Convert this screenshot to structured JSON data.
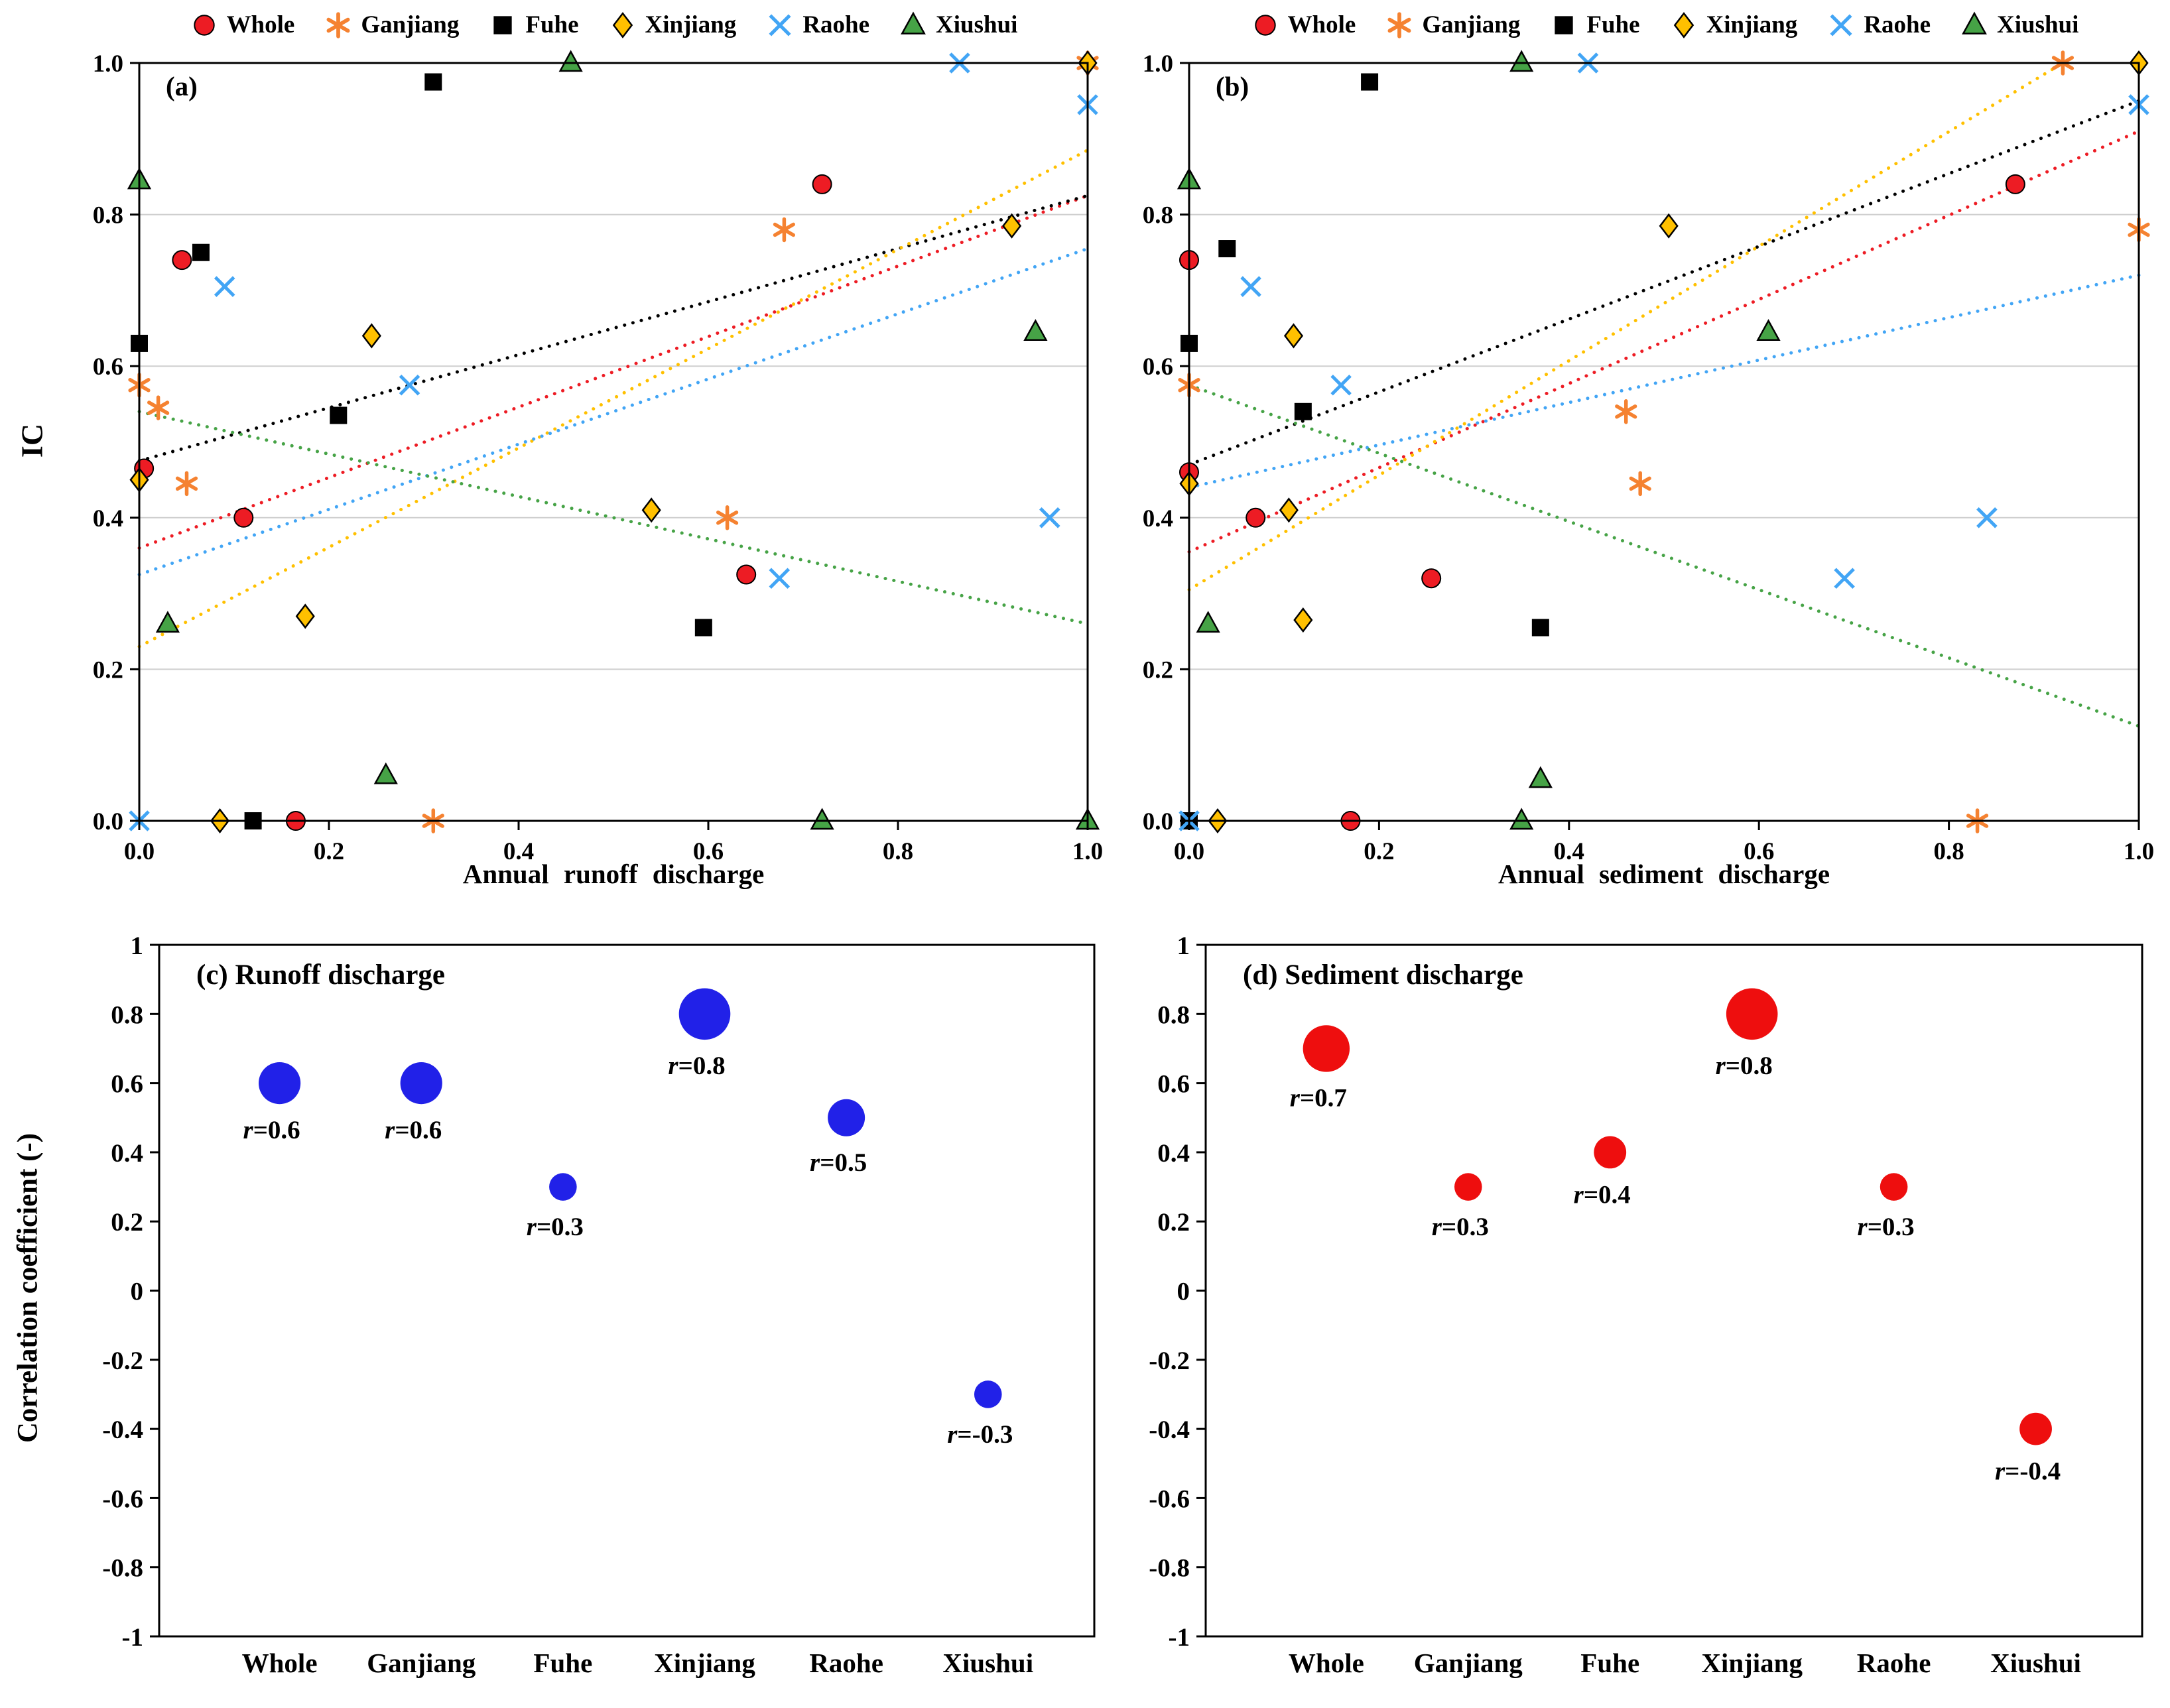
{
  "figure": {
    "background": "#ffffff"
  },
  "legend": {
    "items": [
      {
        "name": "Whole",
        "marker": "circle",
        "color": "#ed1c24",
        "edge": "#000000"
      },
      {
        "name": "Ganjiang",
        "marker": "asterisk",
        "color": "#f58231",
        "edge": null
      },
      {
        "name": "Fuhe",
        "marker": "square",
        "color": "#000000",
        "edge": null
      },
      {
        "name": "Xinjiang",
        "marker": "diamond",
        "color": "#ffc000",
        "edge": "#000000"
      },
      {
        "name": "Raohe",
        "marker": "x",
        "color": "#42a5f5",
        "edge": null
      },
      {
        "name": "Xiushui",
        "marker": "triangle",
        "color": "#46a346",
        "edge": "#000000"
      }
    ]
  },
  "chart_data": [
    {
      "id": "a",
      "type": "scatter",
      "panel_label": "(a)",
      "xlabel": "Annual runoff discharge",
      "ylabel": "IC",
      "xlim": [
        0,
        1
      ],
      "ylim": [
        0,
        1
      ],
      "xtick_values": [
        0,
        0.2,
        0.4,
        0.6,
        0.8,
        1
      ],
      "xtick_labels": [
        "0.0",
        "0.2",
        "0.4",
        "0.6",
        "0.8",
        "1.0"
      ],
      "ytick_values": [
        0,
        0.2,
        0.4,
        0.6,
        0.8,
        1
      ],
      "ytick_labels": [
        "0.0",
        "0.2",
        "0.4",
        "0.6",
        "0.8",
        "1.0"
      ],
      "grid": "horizontal",
      "series": [
        {
          "name": "Whole",
          "marker": "circle",
          "color": "#ed1c24",
          "edge": "#000000",
          "points": [
            [
              0.005,
              0.465
            ],
            [
              0.045,
              0.74
            ],
            [
              0.11,
              0.4
            ],
            [
              0.165,
              0.0
            ],
            [
              0.64,
              0.325
            ],
            [
              0.72,
              0.84
            ]
          ],
          "trend": [
            [
              0,
              0.36
            ],
            [
              1,
              0.825
            ]
          ]
        },
        {
          "name": "Ganjiang",
          "marker": "asterisk",
          "color": "#f58231",
          "edge": null,
          "points": [
            [
              0.0,
              0.575
            ],
            [
              0.02,
              0.545
            ],
            [
              0.05,
              0.445
            ],
            [
              0.31,
              0.0
            ],
            [
              0.62,
              0.4
            ],
            [
              0.68,
              0.78
            ],
            [
              1.0,
              1.0
            ]
          ],
          "trend": null
        },
        {
          "name": "Fuhe",
          "marker": "square",
          "color": "#000000",
          "edge": null,
          "points": [
            [
              0.0,
              0.63
            ],
            [
              0.065,
              0.75
            ],
            [
              0.12,
              0.0
            ],
            [
              0.21,
              0.535
            ],
            [
              0.31,
              0.975
            ],
            [
              0.595,
              0.255
            ]
          ],
          "trend": [
            [
              0,
              0.475
            ],
            [
              1,
              0.825
            ]
          ]
        },
        {
          "name": "Xinjiang",
          "marker": "diamond",
          "color": "#ffc000",
          "edge": "#000000",
          "points": [
            [
              0.0,
              0.45
            ],
            [
              0.085,
              0.0
            ],
            [
              0.175,
              0.27
            ],
            [
              0.245,
              0.64
            ],
            [
              0.54,
              0.41
            ],
            [
              0.92,
              0.785
            ],
            [
              1.0,
              1.0
            ]
          ],
          "trend": [
            [
              0,
              0.23
            ],
            [
              1,
              0.885
            ]
          ]
        },
        {
          "name": "Raohe",
          "marker": "x",
          "color": "#42a5f5",
          "edge": null,
          "points": [
            [
              0.0,
              0.0
            ],
            [
              0.09,
              0.705
            ],
            [
              0.285,
              0.575
            ],
            [
              0.675,
              0.32
            ],
            [
              0.865,
              1.0
            ],
            [
              0.96,
              0.4
            ],
            [
              1.0,
              0.945
            ]
          ],
          "trend": [
            [
              0,
              0.325
            ],
            [
              1,
              0.755
            ]
          ]
        },
        {
          "name": "Xiushui",
          "marker": "triangle",
          "color": "#46a346",
          "edge": "#000000",
          "points": [
            [
              0.0,
              0.845
            ],
            [
              0.03,
              0.26
            ],
            [
              0.26,
              0.06
            ],
            [
              0.455,
              1.0
            ],
            [
              0.72,
              0.0
            ],
            [
              0.945,
              0.645
            ],
            [
              1.0,
              0.0
            ]
          ],
          "trend": [
            [
              0,
              0.54
            ],
            [
              1,
              0.26
            ]
          ]
        }
      ]
    },
    {
      "id": "b",
      "type": "scatter",
      "panel_label": "(b)",
      "xlabel": "Annual sediment discharge",
      "ylabel": "",
      "xlim": [
        0,
        1
      ],
      "ylim": [
        0,
        1
      ],
      "xtick_values": [
        0,
        0.2,
        0.4,
        0.6,
        0.8,
        1
      ],
      "xtick_labels": [
        "0.0",
        "0.2",
        "0.4",
        "0.6",
        "0.8",
        "1.0"
      ],
      "ytick_values": [
        0,
        0.2,
        0.4,
        0.6,
        0.8,
        1
      ],
      "ytick_labels": [
        "0.0",
        "0.2",
        "0.4",
        "0.6",
        "0.8",
        "1.0"
      ],
      "grid": "horizontal",
      "series": [
        {
          "name": "Whole",
          "marker": "circle",
          "color": "#ed1c24",
          "edge": "#000000",
          "points": [
            [
              0.0,
              0.74
            ],
            [
              0.0,
              0.46
            ],
            [
              0.07,
              0.4
            ],
            [
              0.17,
              0.0
            ],
            [
              0.255,
              0.32
            ],
            [
              0.87,
              0.84
            ]
          ],
          "trend": [
            [
              0,
              0.355
            ],
            [
              1,
              0.91
            ]
          ]
        },
        {
          "name": "Ganjiang",
          "marker": "asterisk",
          "color": "#f58231",
          "edge": null,
          "points": [
            [
              0.0,
              0.575
            ],
            [
              0.46,
              0.54
            ],
            [
              0.475,
              0.445
            ],
            [
              0.83,
              0.0
            ],
            [
              0.92,
              1.0
            ],
            [
              1.0,
              0.78
            ]
          ],
          "trend": null
        },
        {
          "name": "Fuhe",
          "marker": "square",
          "color": "#000000",
          "edge": null,
          "points": [
            [
              0.0,
              0.0
            ],
            [
              0.0,
              0.63
            ],
            [
              0.04,
              0.755
            ],
            [
              0.12,
              0.54
            ],
            [
              0.19,
              0.975
            ],
            [
              0.37,
              0.255
            ]
          ],
          "trend": [
            [
              0,
              0.47
            ],
            [
              1,
              0.95
            ]
          ]
        },
        {
          "name": "Xinjiang",
          "marker": "diamond",
          "color": "#ffc000",
          "edge": "#000000",
          "points": [
            [
              0.0,
              0.445
            ],
            [
              0.03,
              0.0
            ],
            [
              0.105,
              0.41
            ],
            [
              0.11,
              0.64
            ],
            [
              0.12,
              0.265
            ],
            [
              0.505,
              0.785
            ],
            [
              1.0,
              1.0
            ]
          ],
          "trend": [
            [
              0,
              0.305
            ],
            [
              0.92,
              1.0
            ]
          ]
        },
        {
          "name": "Raohe",
          "marker": "x",
          "color": "#42a5f5",
          "edge": null,
          "points": [
            [
              0.0,
              0.0
            ],
            [
              0.065,
              0.705
            ],
            [
              0.16,
              0.575
            ],
            [
              0.42,
              1.0
            ],
            [
              0.69,
              0.32
            ],
            [
              0.84,
              0.4
            ],
            [
              1.0,
              0.945
            ]
          ],
          "trend": [
            [
              0,
              0.44
            ],
            [
              1,
              0.72
            ]
          ]
        },
        {
          "name": "Xiushui",
          "marker": "triangle",
          "color": "#46a346",
          "edge": "#000000",
          "points": [
            [
              0.0,
              0.845
            ],
            [
              0.02,
              0.26
            ],
            [
              0.35,
              0.0
            ],
            [
              0.35,
              1.0
            ],
            [
              0.37,
              0.055
            ],
            [
              0.61,
              0.645
            ]
          ],
          "trend": [
            [
              0,
              0.575
            ],
            [
              1,
              0.125
            ]
          ]
        }
      ]
    },
    {
      "id": "c",
      "type": "bubble",
      "title": "(c) Runoff discharge",
      "ylabel": "Correlation coefficient (-)",
      "ylim": [
        -1,
        1
      ],
      "ytick_values": [
        1,
        0.8,
        0.6,
        0.4,
        0.2,
        0,
        -0.2,
        -0.4,
        -0.6,
        -0.8,
        -1
      ],
      "ytick_labels": [
        "1",
        "0.8",
        "0.6",
        "0.4",
        "0.2",
        "0",
        "-0.2",
        "-0.4",
        "-0.6",
        "-0.8",
        "-1"
      ],
      "categories": [
        "Whole",
        "Ganjiang",
        "Fuhe",
        "Xinjiang",
        "Raohe",
        "Xiushui"
      ],
      "values": [
        0.6,
        0.6,
        0.3,
        0.8,
        0.5,
        -0.3
      ],
      "label_prefix": "r=",
      "r_labels": [
        "0.6",
        "0.6",
        "0.3",
        "0.8",
        "0.5",
        "-0.3"
      ],
      "color": "#2121e8"
    },
    {
      "id": "d",
      "type": "bubble",
      "title": "(d) Sediment discharge",
      "ylabel": "Correlation coefficient (-)",
      "ylim": [
        -1,
        1
      ],
      "ytick_values": [
        1,
        0.8,
        0.6,
        0.4,
        0.2,
        0,
        -0.2,
        -0.4,
        -0.6,
        -0.8,
        -1
      ],
      "ytick_labels": [
        "1",
        "0.8",
        "0.6",
        "0.4",
        "0.2",
        "0",
        "-0.2",
        "-0.4",
        "-0.6",
        "-0.8",
        "-1"
      ],
      "categories": [
        "Whole",
        "Ganjiang",
        "Fuhe",
        "Xinjiang",
        "Raohe",
        "Xiushui"
      ],
      "values": [
        0.7,
        0.3,
        0.4,
        0.8,
        0.3,
        -0.4
      ],
      "label_prefix": "r=",
      "r_labels": [
        "0.7",
        "0.3",
        "0.4",
        "0.8",
        "0.3",
        "-0.4"
      ],
      "color": "#ee0e0e"
    }
  ]
}
